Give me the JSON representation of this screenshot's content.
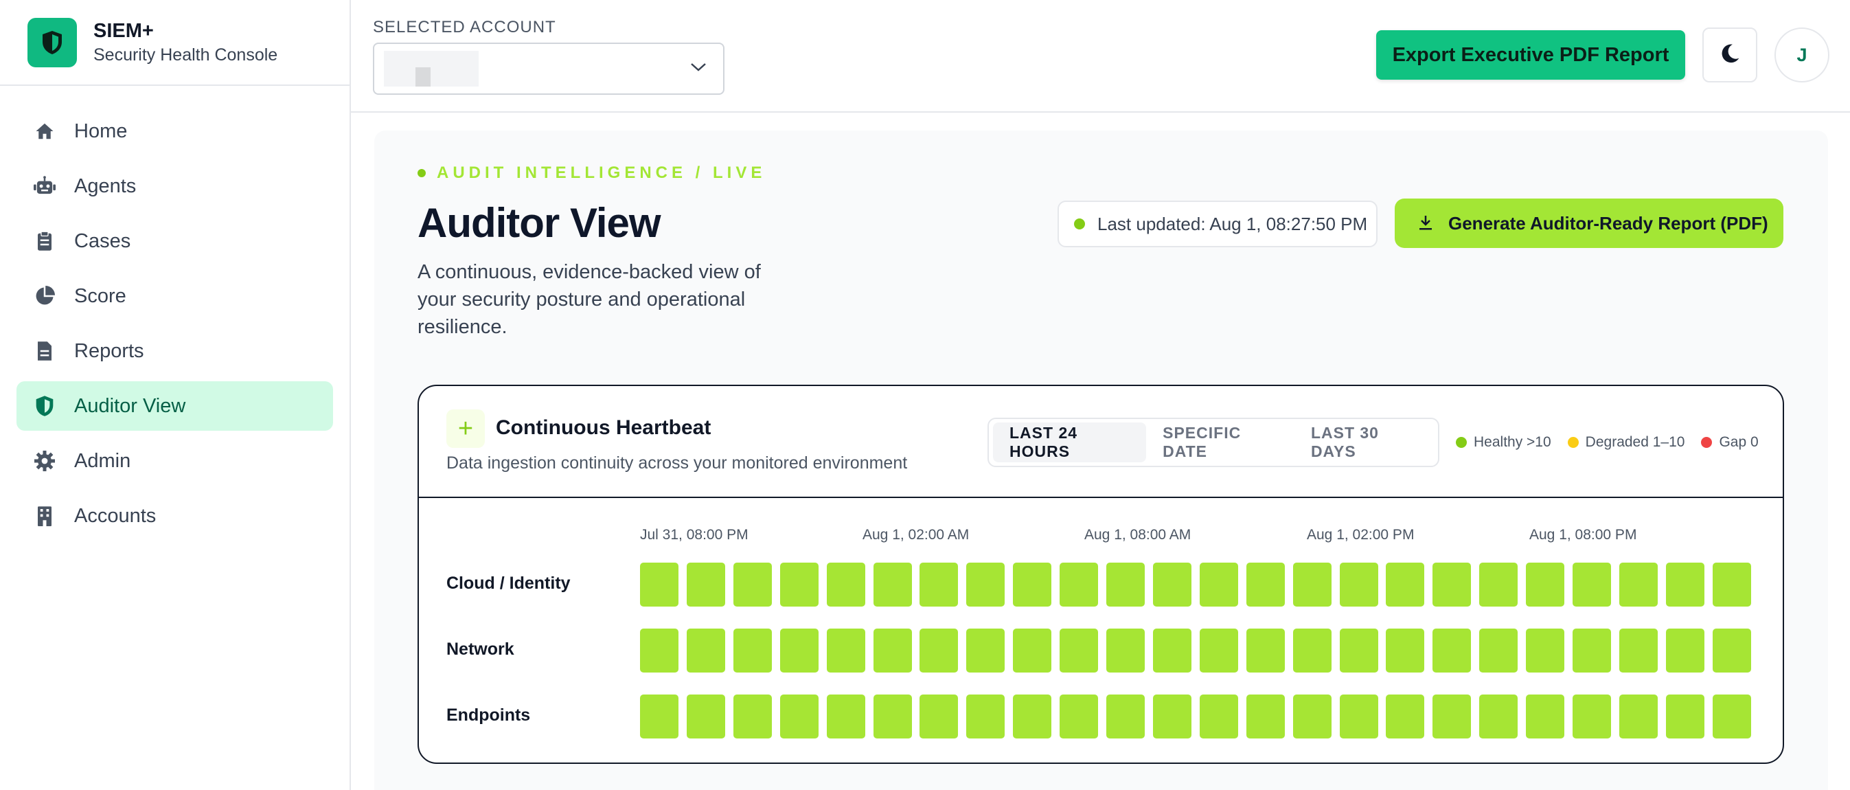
{
  "sidebar": {
    "brand_name": "SIEM+",
    "brand_sub": "Security Health Console",
    "items": [
      {
        "label": "Home",
        "icon": "home-icon",
        "active": false
      },
      {
        "label": "Agents",
        "icon": "robot-icon",
        "active": false
      },
      {
        "label": "Cases",
        "icon": "clipboard-icon",
        "active": false
      },
      {
        "label": "Score",
        "icon": "pie-chart-icon",
        "active": false
      },
      {
        "label": "Reports",
        "icon": "document-icon",
        "active": false
      },
      {
        "label": "Auditor View",
        "icon": "shield-icon",
        "active": true
      },
      {
        "label": "Admin",
        "icon": "gear-icon",
        "active": false
      },
      {
        "label": "Accounts",
        "icon": "building-icon",
        "active": false
      }
    ]
  },
  "topbar": {
    "account_label": "SELECTED ACCOUNT",
    "export_label": "Export Executive PDF Report",
    "avatar_initial": "J"
  },
  "main": {
    "eyebrow": "AUDIT INTELLIGENCE / LIVE",
    "title": "Auditor View",
    "description": "A continuous, evidence-backed view of your security posture and operational resilience.",
    "last_updated": "Last updated: Aug 1, 08:27:50 PM",
    "generate_label": "Generate Auditor-Ready Report (PDF)"
  },
  "heartbeat": {
    "title": "Continuous Heartbeat",
    "subtitle": "Data ingestion continuity across your monitored environment",
    "tabs": [
      {
        "label": "LAST 24 HOURS",
        "active": true
      },
      {
        "label": "SPECIFIC DATE",
        "active": false
      },
      {
        "label": "LAST 30 DAYS",
        "active": false
      }
    ],
    "legend": [
      {
        "label": "Healthy >10",
        "color": "#84cc16"
      },
      {
        "label": "Degraded 1–10",
        "color": "#facc15"
      },
      {
        "label": "Gap 0",
        "color": "#ef4444"
      }
    ],
    "time_labels": [
      "Jul 31, 08:00 PM",
      "Aug 1, 02:00 AM",
      "Aug 1, 08:00 AM",
      "Aug 1, 02:00 PM",
      "Aug 1, 08:00 PM"
    ],
    "rows": [
      {
        "label": "Cloud / Identity",
        "status": [
          "healthy",
          "healthy",
          "healthy",
          "healthy",
          "healthy",
          "healthy",
          "healthy",
          "healthy",
          "healthy",
          "healthy",
          "healthy",
          "healthy",
          "healthy",
          "healthy",
          "healthy",
          "healthy",
          "healthy",
          "healthy",
          "healthy",
          "healthy",
          "healthy",
          "healthy",
          "healthy",
          "healthy"
        ]
      },
      {
        "label": "Network",
        "status": [
          "healthy",
          "healthy",
          "healthy",
          "healthy",
          "healthy",
          "healthy",
          "healthy",
          "healthy",
          "healthy",
          "healthy",
          "healthy",
          "healthy",
          "healthy",
          "healthy",
          "healthy",
          "healthy",
          "healthy",
          "healthy",
          "healthy",
          "healthy",
          "healthy",
          "healthy",
          "healthy",
          "healthy"
        ]
      },
      {
        "label": "Endpoints",
        "status": [
          "healthy",
          "healthy",
          "healthy",
          "healthy",
          "healthy",
          "healthy",
          "healthy",
          "healthy",
          "healthy",
          "healthy",
          "healthy",
          "healthy",
          "healthy",
          "healthy",
          "healthy",
          "healthy",
          "healthy",
          "healthy",
          "healthy",
          "healthy",
          "healthy",
          "healthy",
          "healthy",
          "healthy"
        ]
      }
    ]
  },
  "colors": {
    "accent": "#10b981",
    "lime": "#a3e635",
    "healthy": "#a6e534",
    "degraded": "#facc15",
    "gap": "#ef4444"
  }
}
